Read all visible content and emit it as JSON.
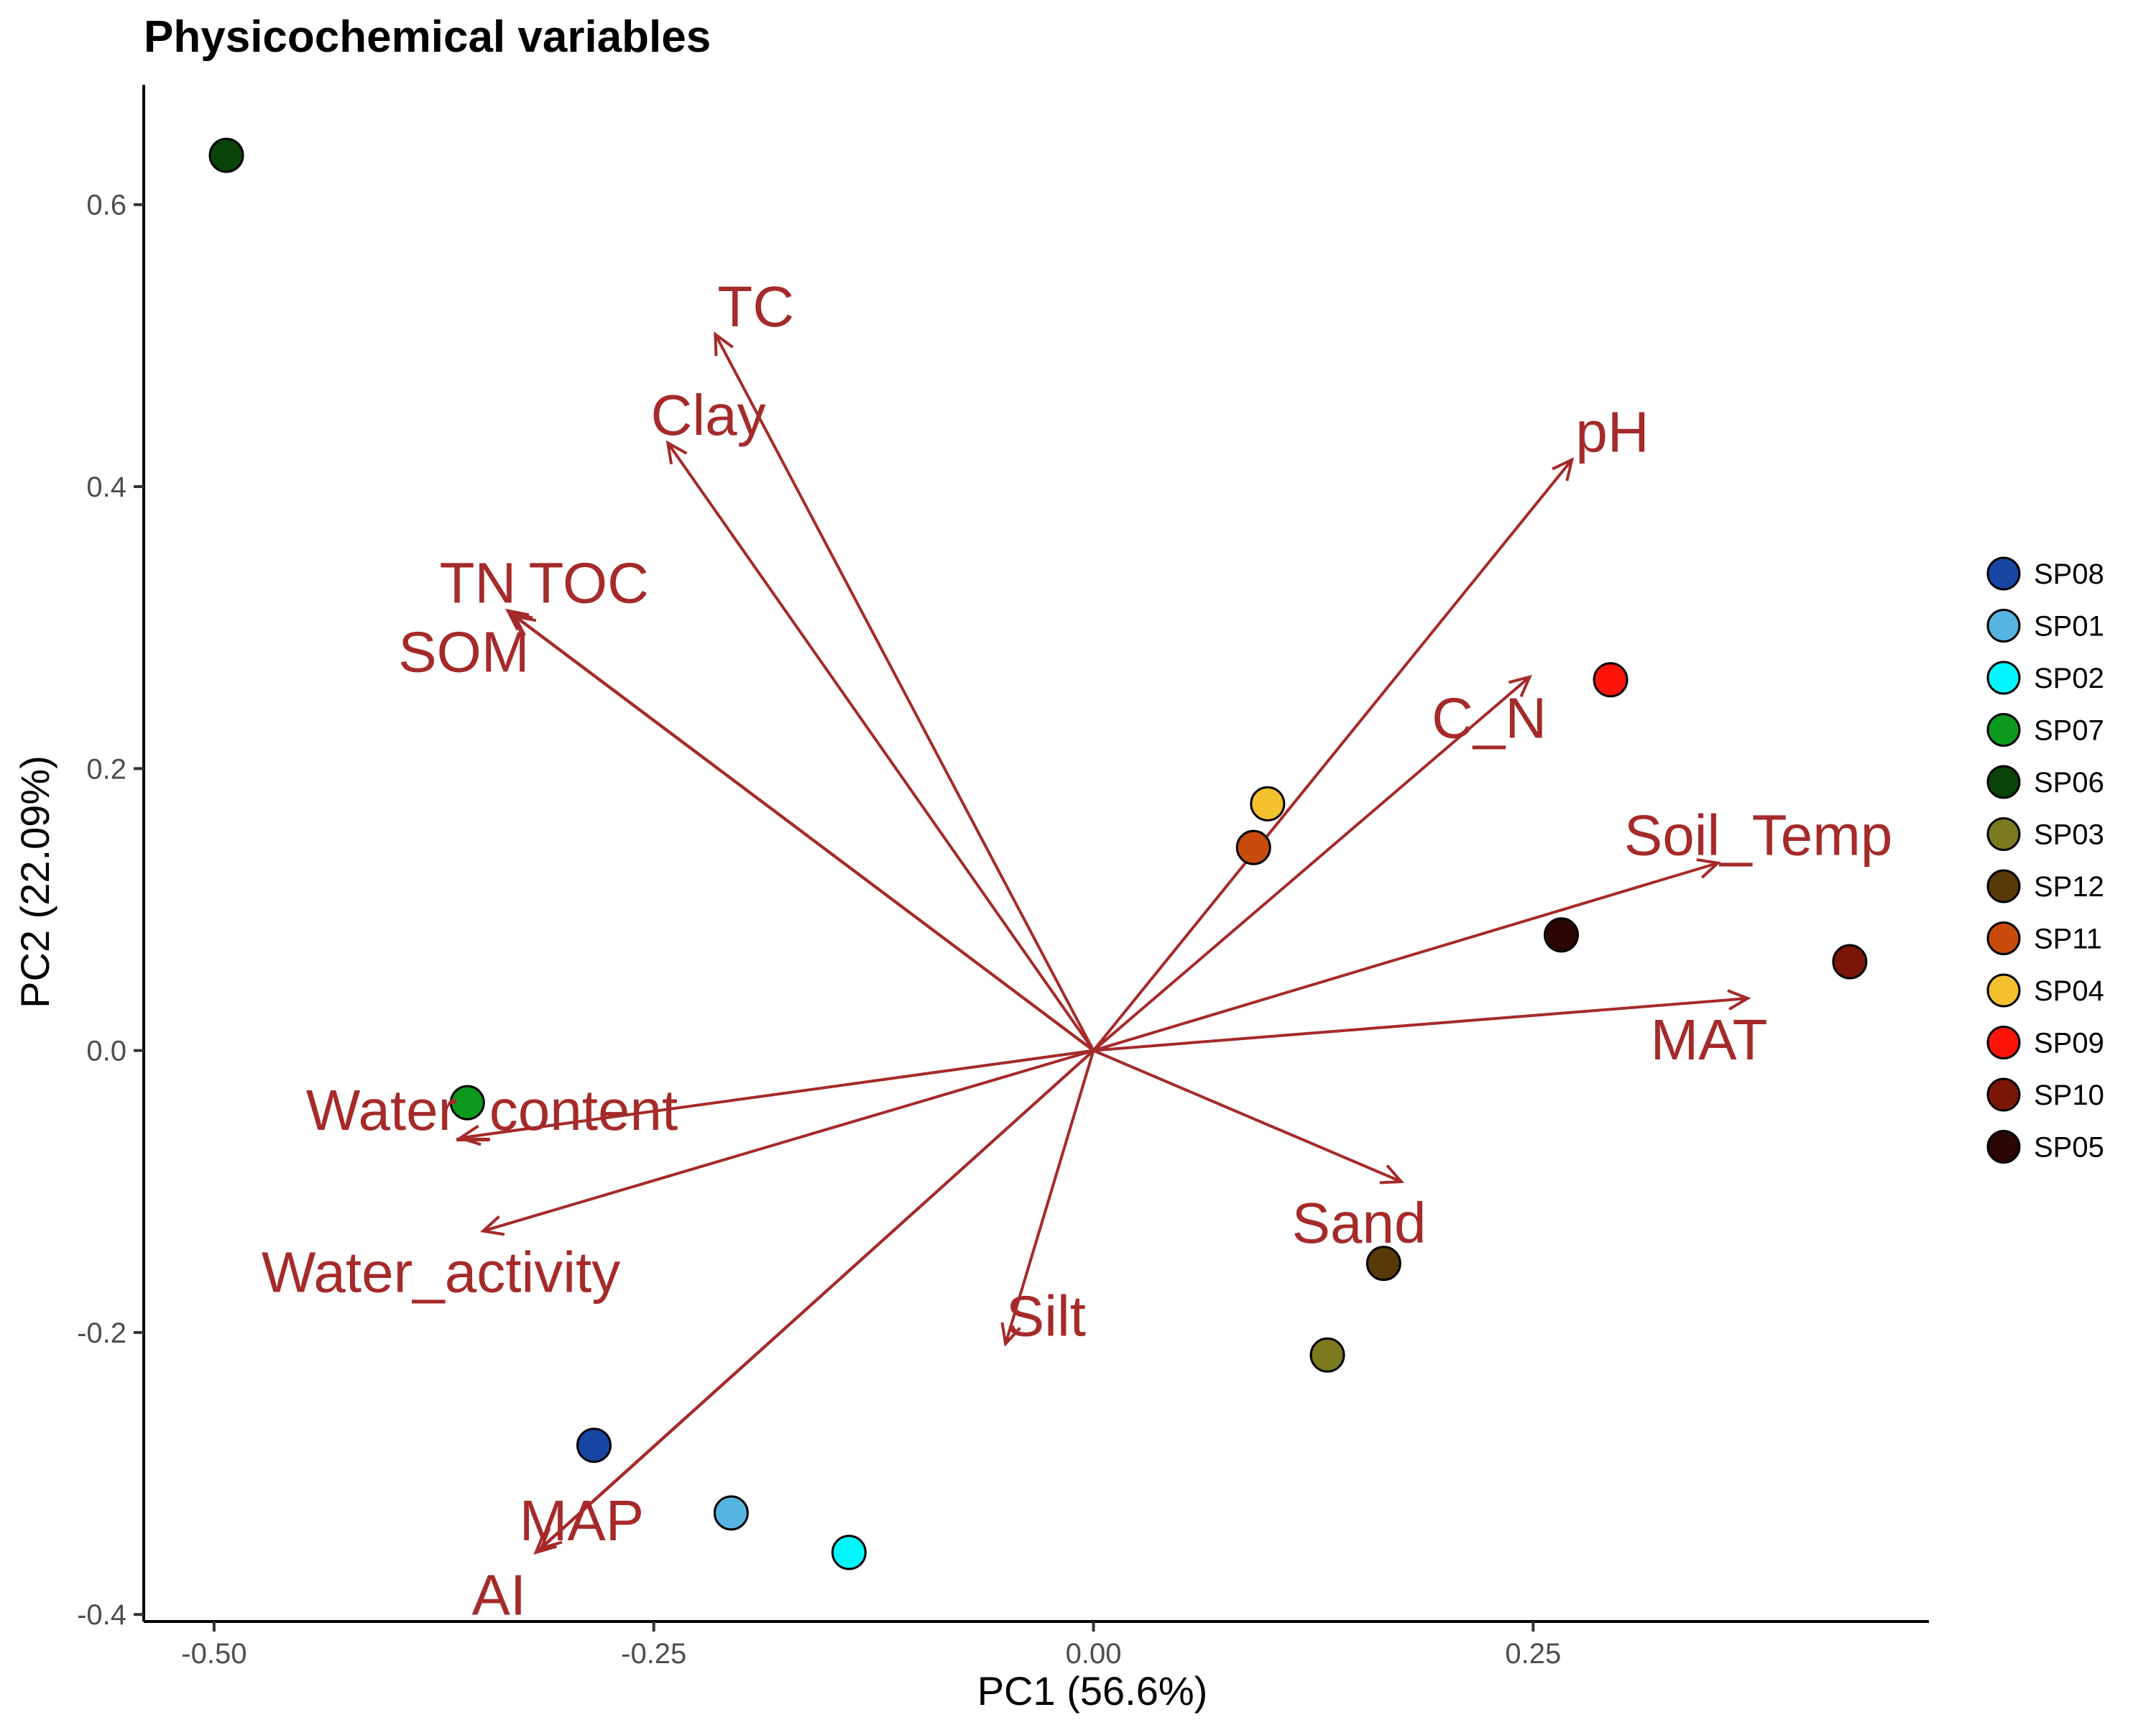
{
  "chart_data": {
    "type": "scatter",
    "subtype": "pca-biplot",
    "title": "Physicochemical variables",
    "xlabel": "PC1 (56.6%)",
    "ylabel": "PC2 (22.09%)",
    "xlim": [
      -0.54,
      0.475
    ],
    "ylim": [
      -0.405,
      0.685
    ],
    "xticks": [
      -0.5,
      -0.25,
      0.0,
      0.25
    ],
    "xtick_labels": [
      "-0.50",
      "-0.25",
      "0.00",
      "0.25"
    ],
    "yticks": [
      -0.4,
      -0.2,
      0.0,
      0.2,
      0.4,
      0.6
    ],
    "ytick_labels": [
      "-0.4",
      "-0.2",
      "0.0",
      "0.2",
      "0.4",
      "0.6"
    ],
    "grid": false,
    "legend_position": "right",
    "arrow_color": "#a52a2a",
    "series": [
      {
        "name": "SP08",
        "color": "#1846a3",
        "x": -0.284,
        "y": -0.28
      },
      {
        "name": "SP01",
        "color": "#56b4e0",
        "x": -0.206,
        "y": -0.328
      },
      {
        "name": "SP02",
        "color": "#00f6fc",
        "x": -0.139,
        "y": -0.356
      },
      {
        "name": "SP07",
        "color": "#0b9a1d",
        "x": -0.356,
        "y": -0.037
      },
      {
        "name": "SP06",
        "color": "#094307",
        "x": -0.493,
        "y": 0.635
      },
      {
        "name": "SP03",
        "color": "#7c7a1e",
        "x": 0.133,
        "y": -0.216
      },
      {
        "name": "SP12",
        "color": "#5a3908",
        "x": 0.165,
        "y": -0.151
      },
      {
        "name": "SP11",
        "color": "#c84b0c",
        "x": 0.091,
        "y": 0.144
      },
      {
        "name": "SP04",
        "color": "#f4c12e",
        "x": 0.099,
        "y": 0.175
      },
      {
        "name": "SP09",
        "color": "#fc1408",
        "x": 0.294,
        "y": 0.263
      },
      {
        "name": "SP10",
        "color": "#7a1607",
        "x": 0.43,
        "y": 0.063
      },
      {
        "name": "SP05",
        "color": "#2b0602",
        "x": 0.266,
        "y": 0.082
      }
    ],
    "arrows": [
      {
        "name": "TC",
        "x": -0.215,
        "y": 0.508,
        "label_x": -0.192,
        "label_y": 0.528
      },
      {
        "name": "Clay",
        "x": -0.242,
        "y": 0.431,
        "label_x": -0.219,
        "label_y": 0.451
      },
      {
        "name": "pH",
        "x": 0.272,
        "y": 0.419,
        "label_x": 0.295,
        "label_y": 0.439
      },
      {
        "name": "TN",
        "x": -0.333,
        "y": 0.312,
        "label_x": -0.35,
        "label_y": 0.332
      },
      {
        "name": "TOC",
        "x": -0.329,
        "y": 0.308,
        "label_x": -0.287,
        "label_y": 0.332
      },
      {
        "name": "SOM",
        "x": -0.331,
        "y": 0.31,
        "label_x": -0.358,
        "label_y": 0.283
      },
      {
        "name": "C_N",
        "x": 0.248,
        "y": 0.265,
        "label_x": 0.225,
        "label_y": 0.236
      },
      {
        "name": "Soil_Temp",
        "x": 0.355,
        "y": 0.133,
        "label_x": 0.378,
        "label_y": 0.153
      },
      {
        "name": "MAT",
        "x": 0.372,
        "y": 0.037,
        "label_x": 0.35,
        "label_y": 0.008
      },
      {
        "name": "Water_content",
        "x": -0.36,
        "y": -0.062,
        "label_x": -0.342,
        "label_y": -0.042
      },
      {
        "name": "Water_activity",
        "x": -0.347,
        "y": -0.128,
        "label_x": -0.371,
        "label_y": -0.157
      },
      {
        "name": "Sand",
        "x": 0.175,
        "y": -0.093,
        "label_x": 0.151,
        "label_y": -0.122
      },
      {
        "name": "Silt",
        "x": -0.05,
        "y": -0.208,
        "label_x": -0.027,
        "label_y": -0.188
      },
      {
        "name": "MAP",
        "x": -0.314,
        "y": -0.353,
        "label_x": -0.291,
        "label_y": -0.333
      },
      {
        "name": "AI",
        "x": -0.317,
        "y": -0.356,
        "label_x": -0.338,
        "label_y": -0.386
      }
    ]
  }
}
